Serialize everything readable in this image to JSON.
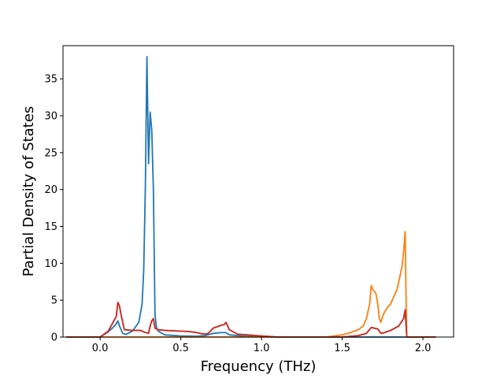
{
  "chart_data": {
    "type": "line",
    "xlabel": "Frequency (THz)",
    "ylabel": "Partial Density of States",
    "xlim": [
      -0.23,
      2.19
    ],
    "ylim": [
      0,
      39.5
    ],
    "x_ticks": [
      "0.0",
      "0.5",
      "1.0",
      "1.5",
      "2.0"
    ],
    "x_tick_values": [
      0.0,
      0.5,
      1.0,
      1.5,
      2.0
    ],
    "y_ticks": [
      "0",
      "5",
      "10",
      "15",
      "20",
      "25",
      "30",
      "35"
    ],
    "y_tick_values": [
      0,
      5,
      10,
      15,
      20,
      25,
      30,
      35
    ],
    "grid": false,
    "series": [
      {
        "color": "#1f77b4",
        "x": [
          -0.21,
          0.0,
          0.05,
          0.08,
          0.1,
          0.11,
          0.12,
          0.14,
          0.16,
          0.2,
          0.24,
          0.26,
          0.27,
          0.28,
          0.29,
          0.3,
          0.31,
          0.32,
          0.33,
          0.34,
          0.35,
          0.36,
          0.4,
          0.5,
          0.6,
          0.65,
          0.7,
          0.75,
          0.78,
          0.8,
          0.85,
          0.9,
          1.0,
          1.05,
          1.1,
          1.2,
          1.4,
          1.6,
          1.8,
          2.08
        ],
        "y": [
          0,
          0,
          0.7,
          1.3,
          1.8,
          2.2,
          1.5,
          0.5,
          0.35,
          0.8,
          2.0,
          4.5,
          9,
          20,
          38,
          23.5,
          30.5,
          28,
          20,
          3,
          1.2,
          0.8,
          0.3,
          0.15,
          0.1,
          0.2,
          0.5,
          0.6,
          0.6,
          0.3,
          0.2,
          0.1,
          0.05,
          0,
          0,
          0,
          0,
          0,
          0,
          0
        ]
      },
      {
        "color": "#ff7f0e",
        "x": [
          -0.21,
          0.0,
          1.4,
          1.5,
          1.55,
          1.6,
          1.63,
          1.65,
          1.67,
          1.68,
          1.69,
          1.7,
          1.71,
          1.72,
          1.73,
          1.74,
          1.75,
          1.76,
          1.78,
          1.8,
          1.82,
          1.84,
          1.85,
          1.86,
          1.87,
          1.88,
          1.89,
          1.895,
          1.9,
          2.08
        ],
        "y": [
          0,
          0,
          0,
          0.3,
          0.6,
          1.0,
          1.5,
          2.5,
          4.5,
          7.0,
          6.4,
          6.2,
          5.8,
          4.5,
          2.5,
          2.0,
          2.8,
          3.3,
          4.0,
          4.5,
          5.5,
          6.5,
          7.5,
          8.5,
          9.5,
          11.5,
          14.3,
          6.0,
          0,
          0
        ]
      },
      {
        "color": "#2ca02c",
        "x": [
          -0.21,
          0.0,
          0.05,
          0.1,
          0.11,
          0.12,
          0.13,
          0.15,
          0.2,
          0.25,
          0.27,
          0.3,
          0.31,
          0.32,
          0.33,
          0.34,
          0.36,
          0.4,
          0.5,
          0.55,
          0.6,
          0.63,
          0.65,
          0.67,
          0.7,
          0.75,
          0.77,
          0.78,
          0.8,
          0.85,
          1.0,
          1.1,
          1.5,
          1.6,
          1.65,
          1.68,
          1.7,
          1.72,
          1.74,
          1.76,
          1.8,
          1.85,
          1.88,
          1.89,
          1.9,
          2.08
        ],
        "y": [
          0,
          0,
          0.8,
          2.8,
          4.7,
          4.2,
          3.0,
          1.0,
          0.9,
          0.9,
          0.7,
          0.5,
          1.5,
          2.2,
          2.5,
          1.2,
          1.0,
          0.9,
          0.8,
          0.75,
          0.6,
          0.45,
          0.4,
          0.5,
          1.2,
          1.6,
          1.7,
          2.0,
          1.0,
          0.4,
          0.15,
          0,
          0,
          0.2,
          0.5,
          1.3,
          1.2,
          1.1,
          0.5,
          0.6,
          0.9,
          1.5,
          2.5,
          3.7,
          0,
          0
        ]
      },
      {
        "color": "#d62728",
        "x": [
          -0.21,
          0.0,
          0.05,
          0.1,
          0.11,
          0.12,
          0.13,
          0.15,
          0.2,
          0.25,
          0.27,
          0.3,
          0.31,
          0.32,
          0.33,
          0.34,
          0.36,
          0.4,
          0.5,
          0.55,
          0.6,
          0.63,
          0.65,
          0.67,
          0.7,
          0.75,
          0.77,
          0.78,
          0.8,
          0.85,
          1.0,
          1.1,
          1.5,
          1.6,
          1.65,
          1.68,
          1.7,
          1.72,
          1.74,
          1.76,
          1.8,
          1.85,
          1.88,
          1.89,
          1.9,
          2.08
        ],
        "y": [
          0,
          0,
          0.8,
          2.8,
          4.7,
          4.2,
          3.0,
          1.0,
          0.9,
          0.9,
          0.7,
          0.5,
          1.5,
          2.2,
          2.5,
          1.2,
          1.0,
          0.9,
          0.8,
          0.75,
          0.6,
          0.45,
          0.4,
          0.5,
          1.2,
          1.6,
          1.7,
          2.0,
          1.0,
          0.4,
          0.15,
          0,
          0,
          0.2,
          0.5,
          1.3,
          1.2,
          1.1,
          0.5,
          0.6,
          0.9,
          1.5,
          2.5,
          3.7,
          0,
          0
        ]
      }
    ]
  }
}
